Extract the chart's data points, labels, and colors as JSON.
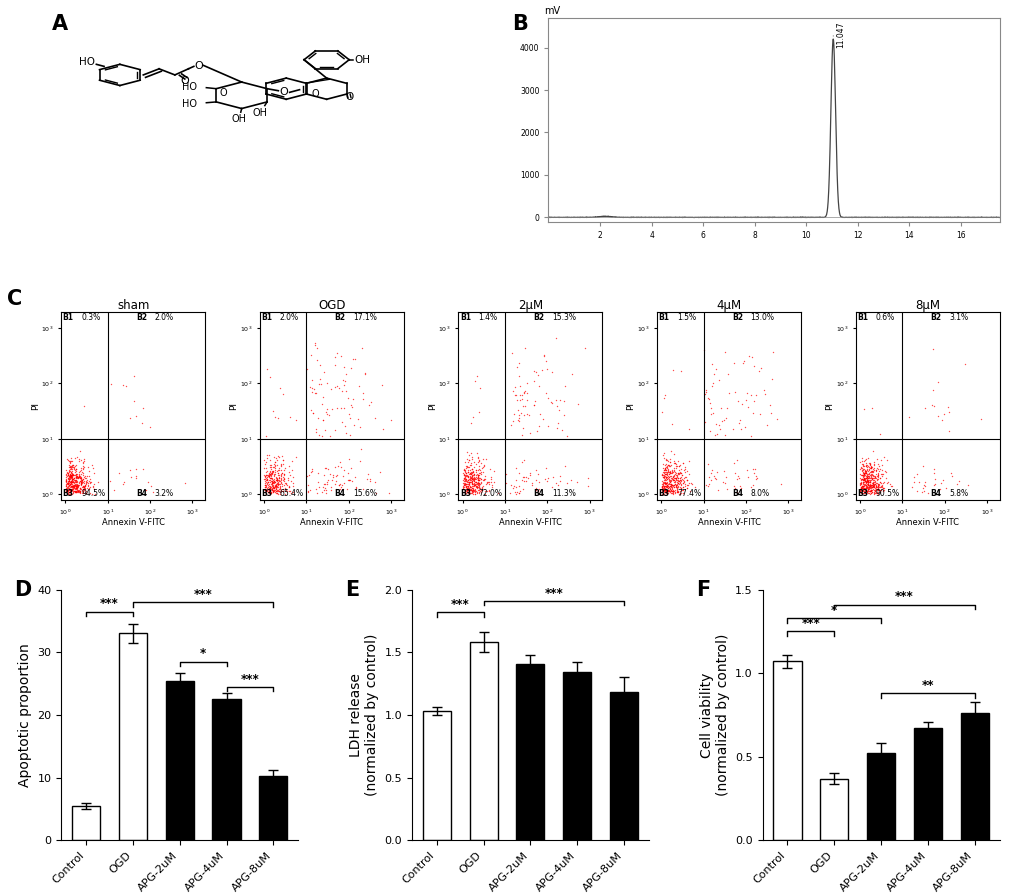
{
  "panel_D": {
    "categories": [
      "Control",
      "OGD",
      "APG-2uM",
      "APG-4uM",
      "APG-8uM"
    ],
    "values": [
      5.5,
      33.0,
      25.5,
      22.5,
      10.3
    ],
    "errors": [
      0.5,
      1.5,
      1.2,
      1.0,
      1.0
    ],
    "colors": [
      "white",
      "white",
      "black",
      "black",
      "black"
    ],
    "ylabel": "Apoptotic proportion",
    "ylim": [
      0,
      40
    ],
    "yticks": [
      0,
      10,
      20,
      30,
      40
    ]
  },
  "panel_E": {
    "categories": [
      "Control",
      "OGD",
      "APG-2uM",
      "APG-4uM",
      "APG-8uM"
    ],
    "values": [
      1.03,
      1.58,
      1.41,
      1.34,
      1.18
    ],
    "errors": [
      0.03,
      0.08,
      0.07,
      0.08,
      0.12
    ],
    "colors": [
      "white",
      "white",
      "black",
      "black",
      "black"
    ],
    "ylabel": "LDH release\n(normalized by control)",
    "ylim": [
      0,
      2.0
    ],
    "yticks": [
      0.0,
      0.5,
      1.0,
      1.5,
      2.0
    ]
  },
  "panel_F": {
    "categories": [
      "Control",
      "OGD",
      "APG-2uM",
      "APG-4uM",
      "APG-8uM"
    ],
    "values": [
      1.07,
      0.37,
      0.52,
      0.67,
      0.76
    ],
    "errors": [
      0.04,
      0.03,
      0.06,
      0.04,
      0.07
    ],
    "colors": [
      "white",
      "white",
      "black",
      "black",
      "black"
    ],
    "ylabel": "Cell viability\n(normalized by control)",
    "ylim": [
      0,
      1.5
    ],
    "yticks": [
      0.0,
      0.5,
      1.0,
      1.5
    ]
  },
  "flow_labels": [
    "sham",
    "OGD",
    "2μM",
    "4μM",
    "8μM"
  ],
  "flow_quadrant_data": [
    {
      "B1": "0.3%",
      "B2": "2.0%",
      "B3": "94.5%",
      "B4": "3.2%"
    },
    {
      "B1": "2.0%",
      "B2": "17.1%",
      "B3": "65.4%",
      "B4": "15.6%"
    },
    {
      "B1": "1.4%",
      "B2": "15.3%",
      "B3": "72.0%",
      "B4": "11.3%"
    },
    {
      "B1": "1.5%",
      "B2": "13.0%",
      "B3": "77.4%",
      "B4": "8.0%"
    },
    {
      "B1": "0.6%",
      "B2": "3.1%",
      "B3": "90.5%",
      "B4": "5.8%"
    }
  ],
  "background_color": "#ffffff",
  "label_fontsize": 10,
  "tick_fontsize": 8,
  "panel_label_fontsize": 15
}
